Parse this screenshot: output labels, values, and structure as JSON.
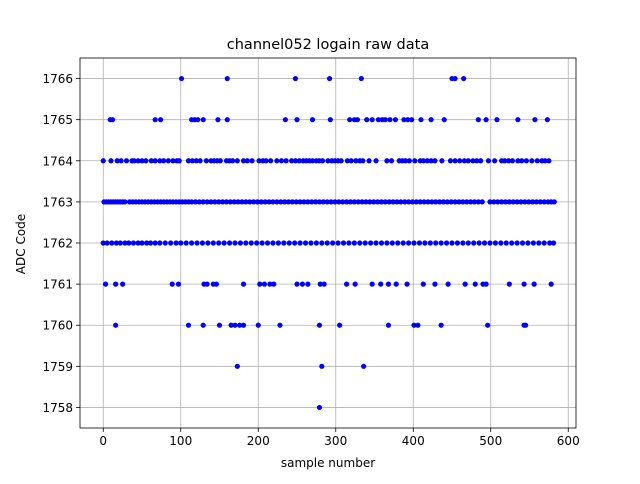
{
  "chart_data": {
    "type": "scatter",
    "title": "channel052 logain raw data",
    "xlabel": "sample number",
    "ylabel": "ADC Code",
    "xlim": [
      -30,
      610
    ],
    "ylim": [
      1757.5,
      1766.5
    ],
    "xticks": [
      0,
      100,
      200,
      300,
      400,
      500,
      600
    ],
    "yticks": [
      1758,
      1759,
      1760,
      1761,
      1762,
      1763,
      1764,
      1765,
      1766
    ],
    "grid": true,
    "marker_color": "#0000ff",
    "series": [
      {
        "points": {
          "1766": [
            101,
            160,
            248,
            292,
            333,
            450,
            454,
            465
          ],
          "1765": [
            9,
            12,
            67,
            74,
            114,
            118,
            122,
            129,
            148,
            160,
            235,
            250,
            270,
            293,
            318,
            324,
            328,
            340,
            347,
            355,
            360,
            364,
            370,
            377,
            388,
            393,
            398,
            410,
            423,
            440,
            484,
            494,
            508,
            535,
            557,
            573
          ],
          "1764": [
            0,
            10,
            18,
            23,
            30,
            37,
            40,
            45,
            50,
            55,
            62,
            67,
            73,
            78,
            84,
            90,
            95,
            98,
            110,
            115,
            120,
            125,
            133,
            139,
            143,
            147,
            151,
            159,
            163,
            167,
            173,
            181,
            186,
            192,
            201,
            206,
            210,
            216,
            224,
            230,
            236,
            243,
            248,
            253,
            258,
            262,
            266,
            270,
            275,
            279,
            283,
            290,
            295,
            299,
            303,
            307,
            315,
            320,
            326,
            331,
            335,
            343,
            352,
            366,
            372,
            382,
            386,
            390,
            395,
            402,
            409,
            413,
            418,
            423,
            428,
            437,
            448,
            454,
            460,
            466,
            471,
            477,
            482,
            487,
            497,
            505,
            514,
            518,
            523,
            528,
            535,
            540,
            546,
            553,
            560,
            566,
            570,
            575
          ],
          "1763": [
            1,
            4,
            7,
            10,
            13,
            16,
            19,
            22,
            25,
            28,
            34,
            38,
            42,
            46,
            50,
            54,
            58,
            62,
            66,
            70,
            74,
            78,
            82,
            86,
            90,
            94,
            98,
            102,
            106,
            110,
            114,
            119,
            124,
            129,
            134,
            139,
            144,
            149,
            154,
            159,
            164,
            169,
            174,
            179,
            184,
            189,
            194,
            199,
            204,
            209,
            214,
            219,
            224,
            229,
            234,
            239,
            244,
            249,
            254,
            259,
            264,
            269,
            274,
            279,
            284,
            289,
            294,
            299,
            304,
            309,
            314,
            319,
            324,
            329,
            334,
            339,
            344,
            349,
            354,
            359,
            364,
            369,
            374,
            379,
            384,
            389,
            394,
            399,
            404,
            409,
            414,
            419,
            424,
            429,
            434,
            439,
            444,
            449,
            454,
            459,
            464,
            469,
            474,
            479,
            484,
            489,
            499,
            504,
            509,
            514,
            519,
            524,
            529,
            534,
            539,
            544,
            549,
            554,
            559,
            564,
            569,
            574,
            578,
            582
          ],
          "1762": [
            0,
            5,
            11,
            17,
            22,
            28,
            33,
            39,
            45,
            50,
            56,
            61,
            67,
            73,
            80,
            87,
            94,
            100,
            107,
            114,
            121,
            128,
            135,
            142,
            149,
            156,
            163,
            170,
            177,
            184,
            191,
            198,
            205,
            212,
            219,
            226,
            233,
            240,
            247,
            254,
            261,
            268,
            275,
            282,
            289,
            296,
            303,
            310,
            317,
            324,
            331,
            338,
            345,
            352,
            359,
            366,
            373,
            380,
            387,
            394,
            401,
            408,
            415,
            422,
            429,
            436,
            443,
            450,
            457,
            464,
            471,
            478,
            485,
            492,
            499,
            506,
            513,
            520,
            527,
            534,
            541,
            548,
            555,
            562,
            569,
            576,
            581
          ],
          "1761": [
            3,
            16,
            25,
            89,
            97,
            130,
            134,
            142,
            146,
            181,
            202,
            208,
            215,
            220,
            250,
            257,
            264,
            280,
            285,
            314,
            325,
            347,
            358,
            368,
            378,
            392,
            413,
            428,
            445,
            467,
            480,
            490,
            494,
            524,
            543,
            556,
            578
          ],
          "1760": [
            16,
            110,
            129,
            150,
            165,
            170,
            176,
            181,
            200,
            228,
            279,
            305,
            368,
            401,
            406,
            436,
            496,
            543,
            545
          ],
          "1759": [
            173,
            282,
            336
          ],
          "1758": [
            279
          ]
        }
      }
    ]
  }
}
